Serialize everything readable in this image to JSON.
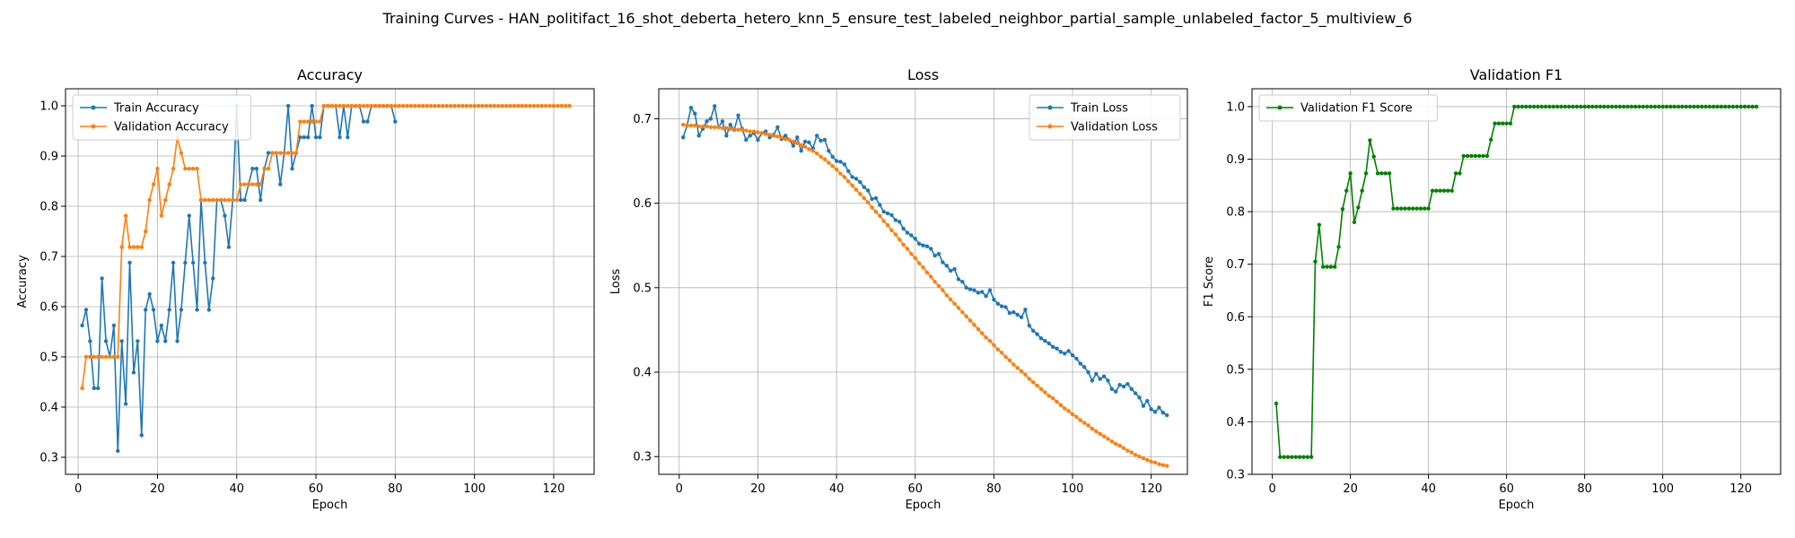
{
  "figure": {
    "suptitle": "Training Curves - HAN_politifact_16_shot_deberta_hetero_knn_5_ensure_test_labeled_neighbor_partial_sample_unlabeled_factor_5_multiview_6"
  },
  "colors": {
    "blue": "#1f77b4",
    "orange": "#ff7f0e",
    "green": "#008000",
    "grid": "#b0b0b0",
    "axis": "#000000"
  },
  "chart_data": [
    {
      "type": "line",
      "title": "Accuracy",
      "xlabel": "Epoch",
      "ylabel": "Accuracy",
      "xlim": [
        -3.2,
        130.2
      ],
      "ylim": [
        0.266,
        1.034
      ],
      "xticks": [
        0,
        20,
        40,
        60,
        80,
        100,
        120
      ],
      "xtick_labels": [
        "0",
        "20",
        "40",
        "60",
        "80",
        "100",
        "120"
      ],
      "yticks": [
        0.3,
        0.4,
        0.5,
        0.6,
        0.7,
        0.8,
        0.9,
        1.0
      ],
      "ytick_labels": [
        "0.3",
        "0.4",
        "0.5",
        "0.6",
        "0.7",
        "0.8",
        "0.9",
        "1.0"
      ],
      "grid": true,
      "legend": "upper left",
      "series": [
        {
          "name": "Train Accuracy",
          "color": "#1f77b4",
          "x_start": 1,
          "values": [
            0.5625,
            0.59375,
            0.53125,
            0.4375,
            0.4375,
            0.65625,
            0.53125,
            0.5,
            0.5625,
            0.3125,
            0.53125,
            0.40625,
            0.6875,
            0.46875,
            0.53125,
            0.34375,
            0.59375,
            0.625,
            0.59375,
            0.53125,
            0.5625,
            0.53125,
            0.59375,
            0.6875,
            0.53125,
            0.59375,
            0.6875,
            0.78125,
            0.6875,
            0.59375,
            0.8125,
            0.6875,
            0.59375,
            0.65625,
            0.8125,
            0.8125,
            0.78125,
            0.71875,
            0.8125,
            1.0,
            0.8125,
            0.8125,
            0.84375,
            0.875,
            0.875,
            0.8125,
            0.875,
            0.90625,
            0.90625,
            0.90625,
            0.84375,
            0.90625,
            1.0,
            0.875,
            0.90625,
            0.9375,
            0.9375,
            0.9375,
            1.0,
            0.9375,
            0.9375,
            1.0,
            1.0,
            1.0,
            1.0,
            0.9375,
            1.0,
            0.9375,
            1.0,
            1.0,
            1.0,
            0.96875,
            0.96875,
            1.0,
            1.0,
            1.0,
            1.0,
            1.0,
            1.0,
            0.96875
          ]
        },
        {
          "name": "Validation Accuracy",
          "color": "#ff7f0e",
          "x_start": 1,
          "values": [
            0.4375,
            0.5,
            0.5,
            0.5,
            0.5,
            0.5,
            0.5,
            0.5,
            0.5,
            0.5,
            0.71875,
            0.78125,
            0.71875,
            0.71875,
            0.71875,
            0.71875,
            0.75,
            0.8125,
            0.84375,
            0.875,
            0.78125,
            0.8125,
            0.84375,
            0.875,
            0.9375,
            0.90625,
            0.875,
            0.875,
            0.875,
            0.875,
            0.8125,
            0.8125,
            0.8125,
            0.8125,
            0.8125,
            0.8125,
            0.8125,
            0.8125,
            0.8125,
            0.8125,
            0.84375,
            0.84375,
            0.84375,
            0.84375,
            0.84375,
            0.84375,
            0.875,
            0.875,
            0.90625,
            0.90625,
            0.90625,
            0.90625,
            0.90625,
            0.90625,
            0.90625,
            0.96875,
            0.96875,
            0.96875,
            0.96875,
            0.96875,
            0.96875,
            1.0
          ],
          "then_constant": 1.0,
          "x_end": 124
        }
      ]
    },
    {
      "type": "line",
      "title": "Loss",
      "xlabel": "Epoch",
      "ylabel": "Loss",
      "xlim": [
        -5.2,
        129.2
      ],
      "ylim": [
        0.279,
        0.7355
      ],
      "xticks": [
        0,
        20,
        40,
        60,
        80,
        100,
        120
      ],
      "xtick_labels": [
        "0",
        "20",
        "40",
        "60",
        "80",
        "100",
        "120"
      ],
      "yticks": [
        0.3,
        0.4,
        0.5,
        0.6,
        0.7
      ],
      "ytick_labels": [
        "0.3",
        "0.4",
        "0.5",
        "0.6",
        "0.7"
      ],
      "grid": true,
      "legend": "upper right",
      "series": [
        {
          "name": "Train Loss",
          "color": "#1f77b4",
          "x_start": 1,
          "values": [
            0.678,
            0.692,
            0.713,
            0.706,
            0.68,
            0.688,
            0.697,
            0.7,
            0.715,
            0.69,
            0.697,
            0.68,
            0.693,
            0.687,
            0.704,
            0.688,
            0.675,
            0.68,
            0.683,
            0.675,
            0.683,
            0.685,
            0.678,
            0.681,
            0.69,
            0.676,
            0.68,
            0.675,
            0.668,
            0.678,
            0.662,
            0.673,
            0.672,
            0.665,
            0.68,
            0.674,
            0.675,
            0.662,
            0.655,
            0.65,
            0.649,
            0.646,
            0.638,
            0.631,
            0.629,
            0.625,
            0.619,
            0.615,
            0.605,
            0.606,
            0.598,
            0.59,
            0.588,
            0.586,
            0.58,
            0.578,
            0.57,
            0.565,
            0.562,
            0.558,
            0.552,
            0.55,
            0.549,
            0.546,
            0.538,
            0.54,
            0.53,
            0.526,
            0.52,
            0.522,
            0.51,
            0.507,
            0.5,
            0.498,
            0.497,
            0.494,
            0.495,
            0.49,
            0.497,
            0.486,
            0.481,
            0.478,
            0.477,
            0.47,
            0.471,
            0.468,
            0.465,
            0.474,
            0.455,
            0.449,
            0.445,
            0.44,
            0.437,
            0.434,
            0.43,
            0.428,
            0.424,
            0.422,
            0.425,
            0.42,
            0.416,
            0.41,
            0.406,
            0.4,
            0.39,
            0.398,
            0.392,
            0.395,
            0.39,
            0.38,
            0.377,
            0.385,
            0.383,
            0.386,
            0.38,
            0.375,
            0.37,
            0.36,
            0.366,
            0.356,
            0.353,
            0.358,
            0.352,
            0.349
          ]
        },
        {
          "name": "Validation Loss",
          "color": "#ff7f0e",
          "x_start": 1,
          "values": [
            0.693,
            0.692,
            0.692,
            0.692,
            0.691,
            0.691,
            0.691,
            0.69,
            0.69,
            0.69,
            0.689,
            0.689,
            0.688,
            0.688,
            0.687,
            0.687,
            0.686,
            0.685,
            0.685,
            0.684,
            0.683,
            0.682,
            0.681,
            0.68,
            0.679,
            0.678,
            0.676,
            0.675,
            0.673,
            0.671,
            0.669,
            0.667,
            0.664,
            0.662,
            0.659,
            0.655,
            0.652,
            0.648,
            0.644,
            0.64,
            0.635,
            0.631,
            0.626,
            0.621,
            0.616,
            0.611,
            0.606,
            0.601,
            0.595,
            0.59,
            0.585,
            0.579,
            0.574,
            0.568,
            0.563,
            0.557,
            0.551,
            0.546,
            0.54,
            0.535,
            0.529,
            0.524,
            0.518,
            0.513,
            0.507,
            0.502,
            0.497,
            0.491,
            0.486,
            0.481,
            0.476,
            0.471,
            0.466,
            0.461,
            0.456,
            0.451,
            0.446,
            0.441,
            0.437,
            0.432,
            0.427,
            0.423,
            0.418,
            0.414,
            0.409,
            0.405,
            0.401,
            0.397,
            0.392,
            0.388,
            0.384,
            0.38,
            0.376,
            0.372,
            0.369,
            0.365,
            0.361,
            0.357,
            0.354,
            0.35,
            0.347,
            0.343,
            0.34,
            0.337,
            0.333,
            0.33,
            0.327,
            0.324,
            0.321,
            0.318,
            0.315,
            0.313,
            0.31,
            0.307,
            0.305,
            0.302,
            0.3,
            0.298,
            0.296,
            0.294,
            0.293,
            0.291,
            0.29,
            0.289
          ]
        }
      ]
    },
    {
      "type": "line",
      "title": "Validation F1",
      "xlabel": "Epoch",
      "ylabel": "F1 Score",
      "xlim": [
        -5.2,
        130.2
      ],
      "ylim": [
        0.3,
        1.034
      ],
      "xticks": [
        0,
        20,
        40,
        60,
        80,
        100,
        120
      ],
      "xtick_labels": [
        "0",
        "20",
        "40",
        "60",
        "80",
        "100",
        "120"
      ],
      "yticks": [
        0.3,
        0.4,
        0.5,
        0.6,
        0.7,
        0.8,
        0.9,
        1.0
      ],
      "ytick_labels": [
        "0.3",
        "0.4",
        "0.5",
        "0.6",
        "0.7",
        "0.8",
        "0.9",
        "1.0"
      ],
      "grid": true,
      "legend": "upper left",
      "series": [
        {
          "name": "Validation F1 Score",
          "color": "#008000",
          "x_start": 1,
          "values": [
            0.435,
            0.333,
            0.333,
            0.333,
            0.333,
            0.333,
            0.333,
            0.333,
            0.333,
            0.333,
            0.705,
            0.775,
            0.695,
            0.695,
            0.695,
            0.695,
            0.733,
            0.805,
            0.84,
            0.873,
            0.78,
            0.808,
            0.84,
            0.873,
            0.936,
            0.905,
            0.873,
            0.873,
            0.873,
            0.873,
            0.806,
            0.806,
            0.806,
            0.806,
            0.806,
            0.806,
            0.806,
            0.806,
            0.806,
            0.806,
            0.84,
            0.84,
            0.84,
            0.84,
            0.84,
            0.84,
            0.873,
            0.873,
            0.906,
            0.906,
            0.906,
            0.906,
            0.906,
            0.906,
            0.906,
            0.937,
            0.968,
            0.968,
            0.968,
            0.968,
            0.968,
            1.0
          ],
          "then_constant": 1.0,
          "x_end": 124
        }
      ]
    }
  ]
}
